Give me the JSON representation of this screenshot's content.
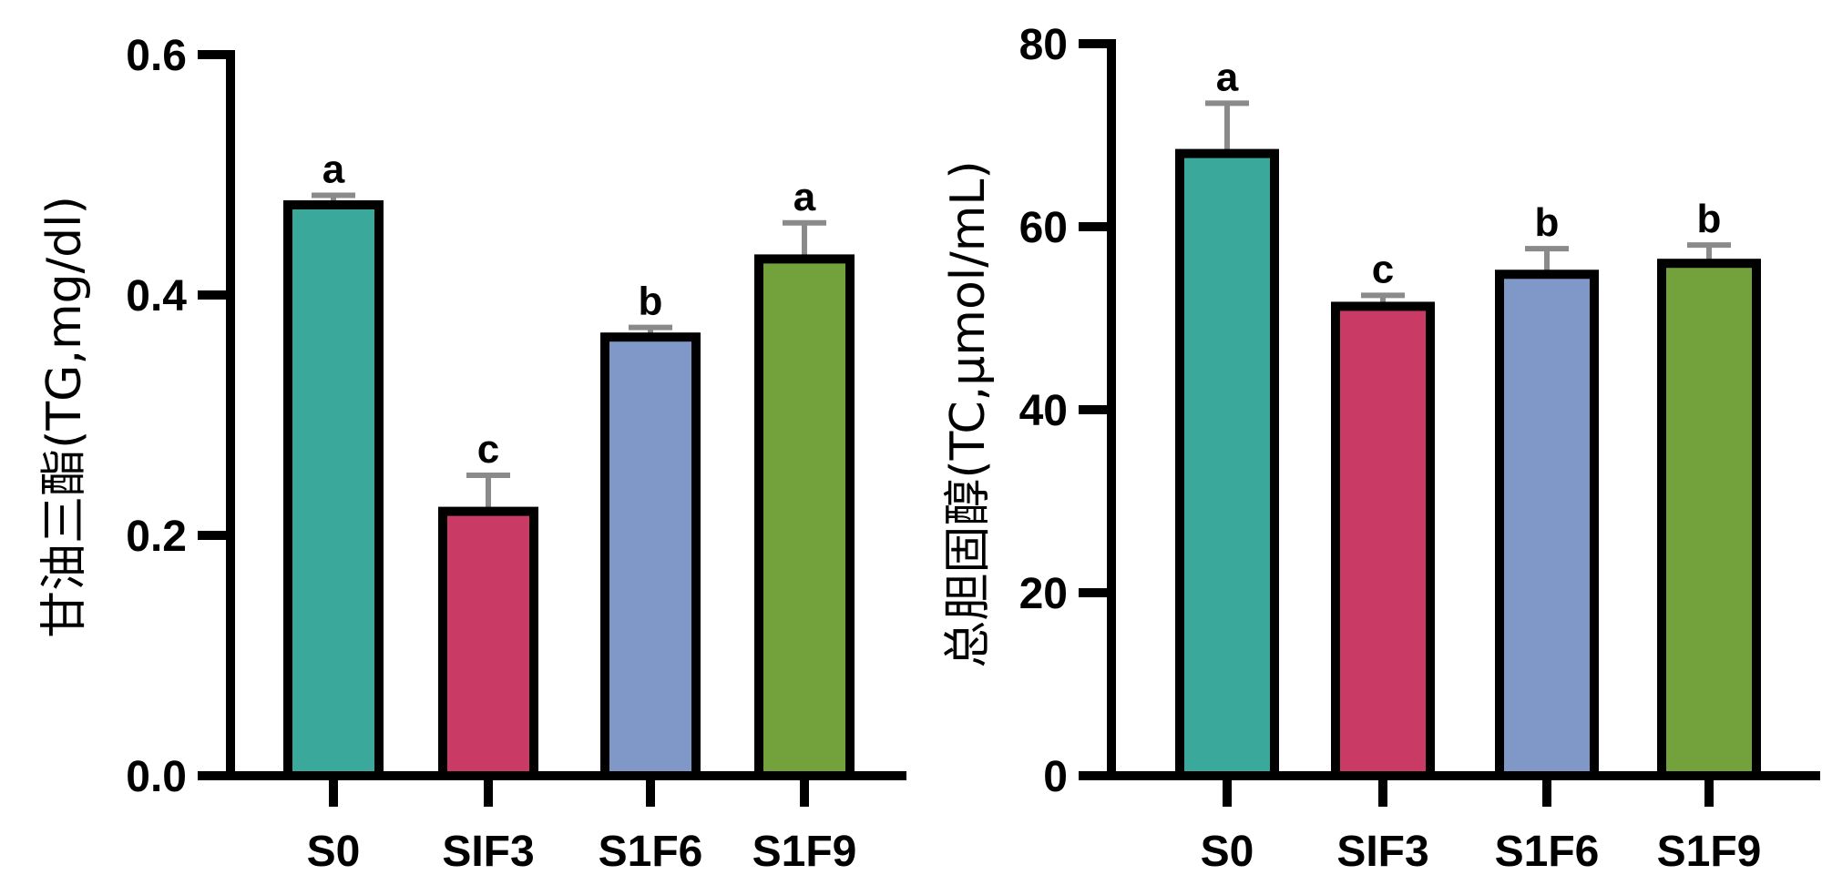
{
  "chart_data": [
    {
      "type": "bar",
      "categories": [
        "S0",
        "SIF3",
        "S1F6",
        "S1F9"
      ],
      "values": [
        0.475,
        0.22,
        0.365,
        0.43
      ],
      "errors": [
        0.008,
        0.03,
        0.008,
        0.03
      ],
      "significance": [
        "a",
        "c",
        "b",
        "a"
      ],
      "colors": [
        "#3aa89a",
        "#c93a64",
        "#7f98c8",
        "#73a13c"
      ],
      "title": "",
      "xlabel": "",
      "ylabel": "甘油三酯(TG,mg/dl)",
      "ylim": [
        0,
        0.6
      ],
      "yticks": [
        0.0,
        0.2,
        0.4,
        0.6
      ],
      "ytick_labels": [
        "0.0",
        "0.2",
        "0.4",
        "0.6"
      ]
    },
    {
      "type": "bar",
      "categories": [
        "S0",
        "SIF3",
        "S1F6",
        "S1F9"
      ],
      "values": [
        68,
        51.3,
        54.8,
        56
      ],
      "errors": [
        5.5,
        1.2,
        2.8,
        2.0
      ],
      "significance": [
        "a",
        "c",
        "b",
        "b"
      ],
      "colors": [
        "#3aa89a",
        "#c93a64",
        "#7f98c8",
        "#73a13c"
      ],
      "title": "",
      "xlabel": "",
      "ylabel": "总胆固醇(TC,μmol/mL)",
      "ylim": [
        0,
        80
      ],
      "yticks": [
        0,
        20,
        40,
        60,
        80
      ],
      "ytick_labels": [
        "0",
        "20",
        "40",
        "60",
        "80"
      ]
    }
  ]
}
